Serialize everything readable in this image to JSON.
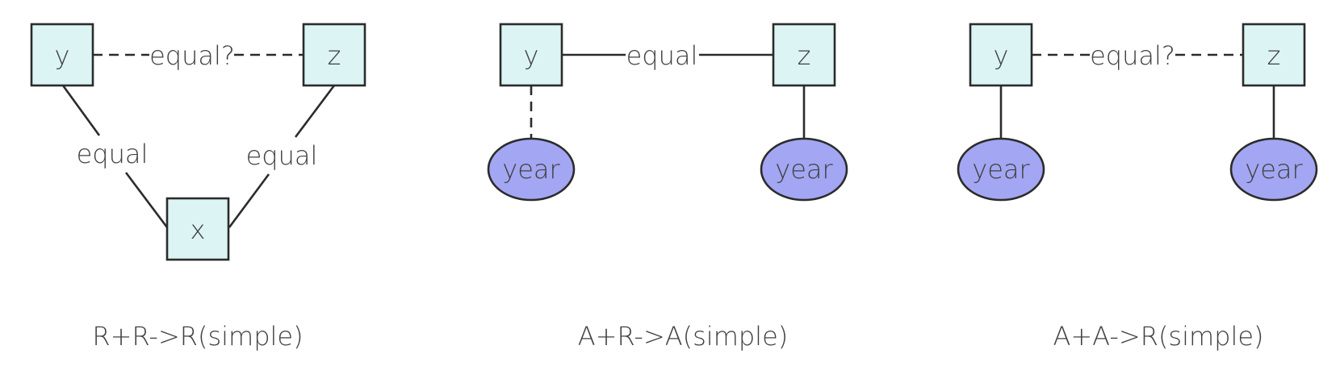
{
  "colors": {
    "box_fill": "#dcf4f4",
    "ellipse_fill": "#a3a6f2",
    "stroke": "#2b2b2b",
    "text": "#404040"
  },
  "panels": [
    {
      "caption": "R+R->R(simple)",
      "nodes": {
        "y": "y",
        "z": "z",
        "x": "x"
      },
      "edges": {
        "y_z": "equal?",
        "y_x": "equal",
        "z_x": "equal"
      }
    },
    {
      "caption": "A+R->A(simple)",
      "nodes": {
        "y": "y",
        "z": "z",
        "y_attr": "year",
        "z_attr": "year"
      },
      "edges": {
        "y_z": "equal"
      }
    },
    {
      "caption": "A+A->R(simple)",
      "nodes": {
        "y": "y",
        "z": "z",
        "y_attr": "year",
        "z_attr": "year"
      },
      "edges": {
        "y_z": "equal?"
      }
    }
  ]
}
